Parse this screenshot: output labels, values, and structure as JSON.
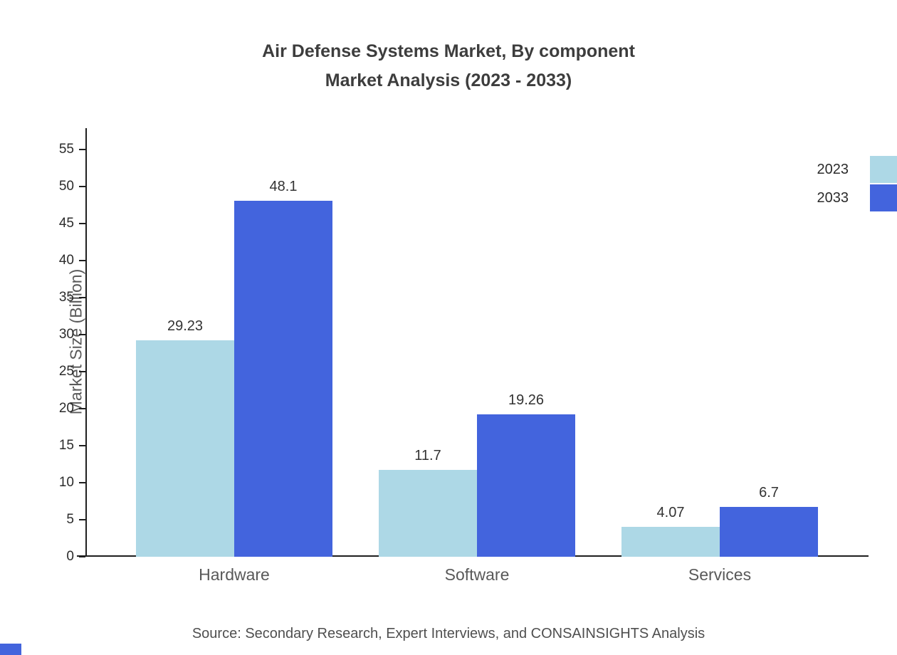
{
  "chart_data": {
    "type": "bar",
    "title": "Air Defense Systems Market, By component",
    "subtitle": "Market Analysis (2023 - 2033)",
    "categories": [
      "Hardware",
      "Software",
      "Services"
    ],
    "series": [
      {
        "name": "2023",
        "color": "#add8e6",
        "values": [
          29.23,
          11.7,
          4.07
        ]
      },
      {
        "name": "2033",
        "color": "#4364dd",
        "values": [
          48.1,
          19.26,
          6.7
        ]
      }
    ],
    "ylabel": "Market Size (Billion)",
    "xlabel": "",
    "ylim": [
      0,
      55
    ],
    "ytick_step": 5,
    "grid": false,
    "legend_position": "top-right",
    "source": "Source: Secondary Research, Expert Interviews, and CONSAINSIGHTS Analysis"
  },
  "colors": {
    "axis": "#1f1f1f",
    "tick_text": "#2b2b2b",
    "title_text": "#3d3d3d",
    "muted_text": "#595959",
    "value_text": "#333333"
  }
}
